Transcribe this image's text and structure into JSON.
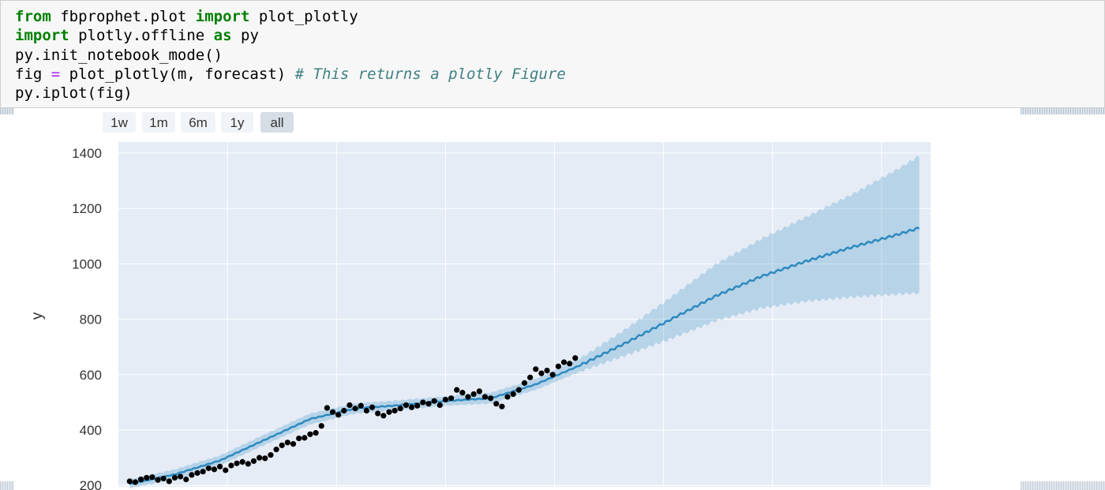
{
  "notebook": {
    "code_lines": [
      [
        {
          "t": "from",
          "c": "kw"
        },
        {
          "t": " fbprophet.plot ",
          "c": ""
        },
        {
          "t": "import",
          "c": "kw"
        },
        {
          "t": " plot_plotly",
          "c": ""
        }
      ],
      [
        {
          "t": "import",
          "c": "kw"
        },
        {
          "t": " plotly.offline ",
          "c": ""
        },
        {
          "t": "as",
          "c": "kw"
        },
        {
          "t": " py",
          "c": ""
        }
      ],
      [
        {
          "t": "py.init_notebook_mode()",
          "c": ""
        }
      ],
      [
        {
          "t": "fig ",
          "c": ""
        },
        {
          "t": "=",
          "c": "op"
        },
        {
          "t": " plot_plotly(m, forecast) ",
          "c": ""
        },
        {
          "t": "# This returns a plotly Figure",
          "c": "cm"
        }
      ],
      [
        {
          "t": "py.iplot(fig)",
          "c": ""
        }
      ]
    ]
  },
  "range_selector": {
    "buttons": [
      "1w",
      "1m",
      "6m",
      "1y",
      "all"
    ],
    "active": "all"
  },
  "colors": {
    "plot_bg": "#e5ecf6",
    "grid": "#ffffff",
    "forecast_line": "#0072b2",
    "uncertainty_band": "#0072b2",
    "actual_points": "#000000",
    "button_bg": "#f0f4f8",
    "button_active_bg": "#d6dde5"
  },
  "chart_data": {
    "type": "scatter",
    "ylabel": "y",
    "yticks": [
      200,
      400,
      600,
      800,
      1000,
      1200,
      1400
    ],
    "ylim": [
      195,
      1440
    ],
    "grid": true,
    "x_unit": "months from start of history",
    "xlim": [
      -1,
      71
    ],
    "forecast_x": [
      0,
      4,
      8,
      12,
      16,
      20,
      24,
      28,
      32,
      36,
      40,
      44,
      48,
      52,
      56,
      60,
      64,
      68,
      70
    ],
    "forecast_y": [
      205,
      240,
      290,
      365,
      440,
      478,
      490,
      505,
      515,
      565,
      635,
      715,
      800,
      885,
      955,
      1010,
      1060,
      1105,
      1130
    ],
    "upper_y": [
      222,
      258,
      308,
      385,
      460,
      496,
      508,
      522,
      535,
      585,
      660,
      765,
      880,
      1000,
      1090,
      1170,
      1250,
      1340,
      1390
    ],
    "lower_y": [
      190,
      222,
      272,
      347,
      420,
      460,
      472,
      488,
      496,
      545,
      612,
      670,
      730,
      795,
      840,
      865,
      880,
      890,
      895
    ],
    "actual_x": [
      0,
      0.5,
      1,
      1.5,
      2,
      2.5,
      3,
      3.5,
      4,
      4.5,
      5,
      5.5,
      6,
      6.5,
      7,
      7.5,
      8,
      8.5,
      9,
      9.5,
      10,
      10.5,
      11,
      11.5,
      12,
      12.5,
      13,
      13.5,
      14,
      14.5,
      15,
      15.5,
      16,
      16.5,
      17,
      17.5,
      18,
      18.5,
      19,
      19.5,
      20,
      20.5,
      21,
      21.5,
      22,
      22.5,
      23,
      23.5,
      24,
      24.5,
      25,
      25.5,
      26,
      26.5,
      27,
      27.5,
      28,
      28.5,
      29,
      29.5,
      30,
      30.5,
      31,
      31.5,
      32,
      32.5,
      33,
      33.5,
      34,
      34.5,
      35,
      35.5,
      36,
      36.5,
      37,
      37.5,
      38,
      38.5,
      39,
      39.5
    ],
    "actual_y": [
      215,
      212,
      222,
      228,
      230,
      220,
      225,
      215,
      228,
      232,
      222,
      238,
      245,
      250,
      262,
      258,
      268,
      255,
      272,
      280,
      285,
      278,
      288,
      300,
      298,
      310,
      330,
      345,
      355,
      350,
      370,
      372,
      385,
      390,
      415,
      480,
      465,
      455,
      470,
      490,
      478,
      488,
      470,
      482,
      460,
      452,
      465,
      470,
      478,
      490,
      482,
      488,
      500,
      495,
      505,
      490,
      510,
      515,
      545,
      535,
      520,
      530,
      540,
      520,
      515,
      495,
      485,
      520,
      530,
      545,
      570,
      590,
      620,
      605,
      615,
      600,
      630,
      645,
      640,
      660
    ]
  }
}
